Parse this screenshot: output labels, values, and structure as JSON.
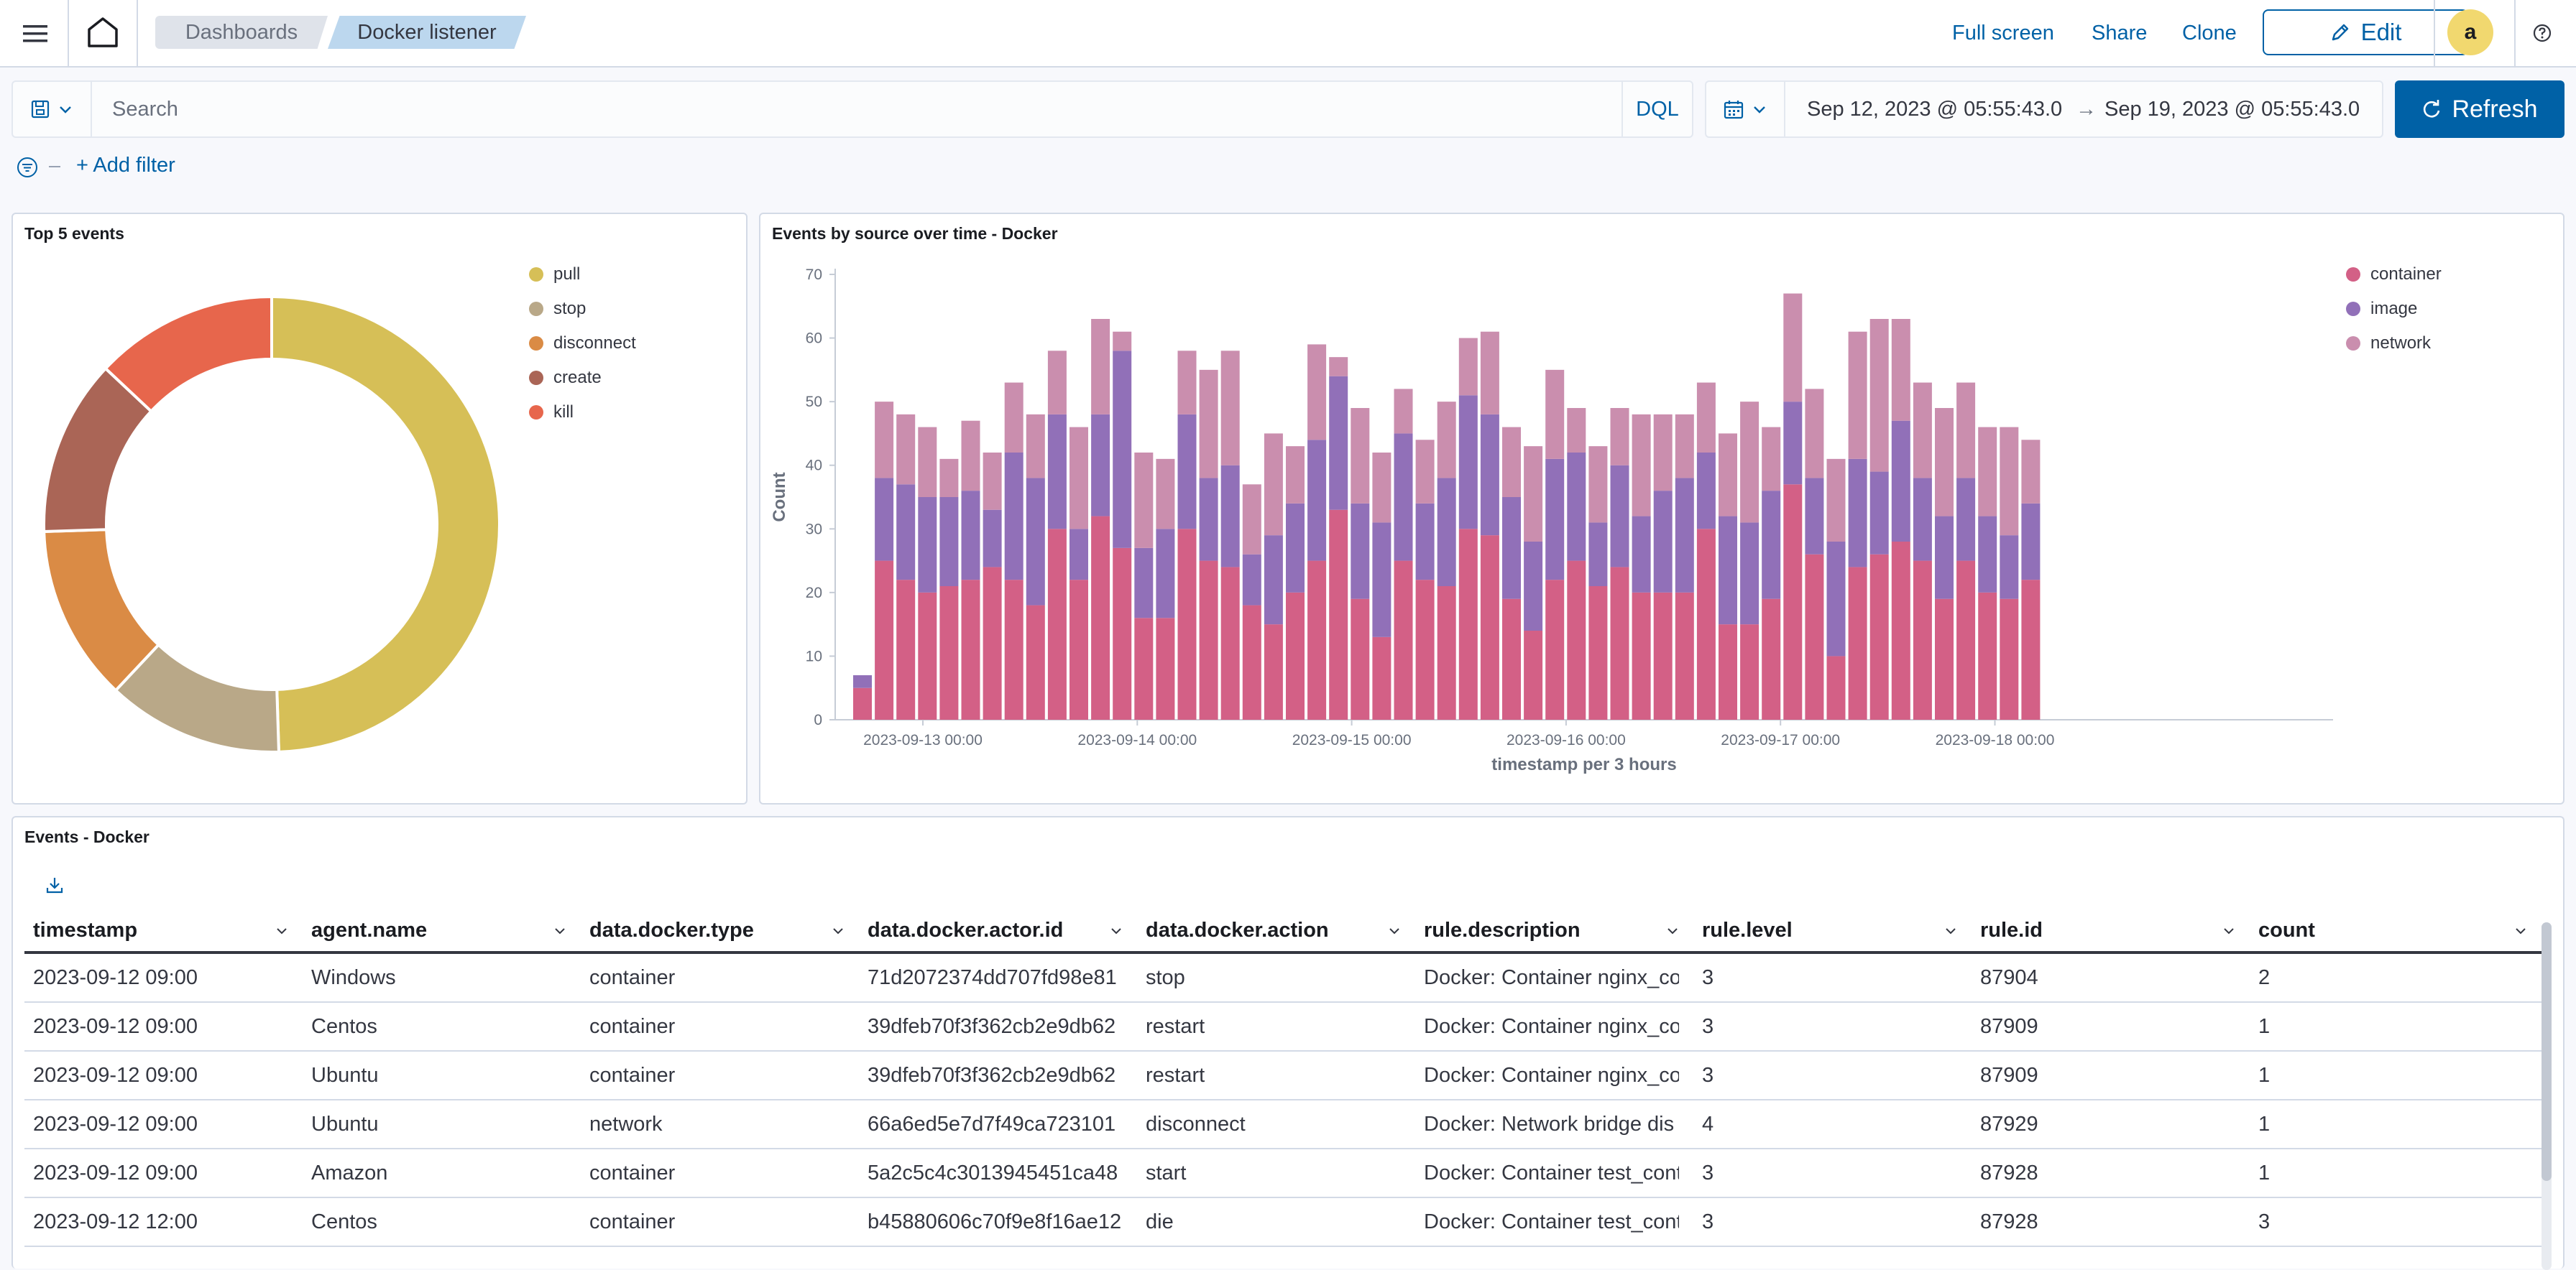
{
  "header": {
    "breadcrumbs": [
      "Dashboards",
      "Docker listener"
    ],
    "links": {
      "fullscreen": "Full screen",
      "share": "Share",
      "clone": "Clone"
    },
    "edit_label": "Edit",
    "avatar_initial": "a",
    "help_icon": "help-icon",
    "menu_icon": "hamburger-icon",
    "home_icon": "home-icon"
  },
  "query": {
    "placeholder": "Search",
    "language": "DQL",
    "date_start": "Sep 12, 2023 @ 05:55:43.0",
    "date_arrow": "→",
    "date_end": "Sep 19, 2023 @ 05:55:43.0",
    "refresh_label": "Refresh",
    "add_filter": "+ Add filter"
  },
  "colors": {
    "accent": "#0061a6",
    "pull": "#d6bf57",
    "stop": "#b9a888",
    "disconnect": "#da8b45",
    "create": "#aa6556",
    "kill": "#e7664c",
    "container": "#d36086",
    "image": "#9170b8",
    "network": "#ca8eae"
  },
  "donut_panel": {
    "title": "Top 5 events",
    "legend": [
      "pull",
      "stop",
      "disconnect",
      "create",
      "kill"
    ]
  },
  "bar_panel": {
    "title": "Events by source over time - Docker",
    "legend": [
      "container",
      "image",
      "network"
    ]
  },
  "chart_data": [
    {
      "type": "pie",
      "title": "Top 5 events",
      "categories": [
        "pull",
        "stop",
        "disconnect",
        "create",
        "kill"
      ],
      "values": [
        49.5,
        12.5,
        12.5,
        12.5,
        13
      ]
    },
    {
      "type": "bar",
      "stacked": true,
      "title": "Events by source over time - Docker",
      "xlabel": "timestamp per 3 hours",
      "ylabel": "Count",
      "ylim": [
        0,
        70
      ],
      "yticks": [
        0,
        10,
        20,
        30,
        40,
        50,
        60,
        70
      ],
      "xticks": [
        "2023-09-13 00:00",
        "2023-09-14 00:00",
        "2023-09-15 00:00",
        "2023-09-16 00:00",
        "2023-09-17 00:00",
        "2023-09-18 00:00"
      ],
      "series": [
        {
          "name": "container",
          "values": [
            5,
            25,
            22,
            20,
            21,
            22,
            24,
            22,
            18,
            30,
            22,
            32,
            27,
            16,
            16,
            30,
            25,
            24,
            18,
            15,
            20,
            25,
            33,
            19,
            13,
            25,
            22,
            21,
            30,
            29,
            19,
            14,
            22,
            25,
            21,
            24,
            20,
            20,
            20,
            30,
            15,
            15,
            19,
            37,
            26,
            10,
            24,
            26,
            28,
            25,
            19,
            25,
            20,
            19,
            22
          ]
        },
        {
          "name": "image",
          "values": [
            2,
            13,
            15,
            15,
            14,
            14,
            9,
            20,
            20,
            18,
            8,
            16,
            31,
            11,
            14,
            18,
            13,
            16,
            8,
            14,
            14,
            19,
            21,
            15,
            18,
            20,
            12,
            17,
            21,
            19,
            16,
            14,
            19,
            17,
            10,
            16,
            12,
            16,
            18,
            12,
            17,
            16,
            17,
            13,
            12,
            18,
            17,
            13,
            19,
            13,
            13,
            13,
            12,
            10,
            12
          ]
        },
        {
          "name": "network",
          "values": [
            0,
            12,
            11,
            11,
            6,
            11,
            9,
            11,
            10,
            10,
            16,
            15,
            3,
            15,
            11,
            10,
            17,
            18,
            11,
            16,
            9,
            15,
            3,
            15,
            11,
            7,
            10,
            12,
            9,
            13,
            11,
            15,
            14,
            7,
            12,
            9,
            16,
            12,
            10,
            11,
            13,
            19,
            10,
            17,
            14,
            13,
            20,
            24,
            16,
            15,
            17,
            15,
            14,
            17,
            10
          ]
        }
      ]
    }
  ],
  "table": {
    "title": "Events - Docker",
    "export_icon": "download-icon",
    "columns": [
      "timestamp",
      "agent.name",
      "data.docker.type",
      "data.docker.actor.id",
      "data.docker.action",
      "rule.description",
      "rule.level",
      "rule.id",
      "count"
    ],
    "rows": [
      [
        "2023-09-12 09:00",
        "Windows",
        "container",
        "71d2072374dd707fd98e81",
        "stop",
        "Docker: Container nginx_co",
        "3",
        "87904",
        "2"
      ],
      [
        "2023-09-12 09:00",
        "Centos",
        "container",
        "39dfeb70f3f362cb2e9db62",
        "restart",
        "Docker: Container nginx_co",
        "3",
        "87909",
        "1"
      ],
      [
        "2023-09-12 09:00",
        "Ubuntu",
        "container",
        "39dfeb70f3f362cb2e9db62",
        "restart",
        "Docker: Container nginx_co",
        "3",
        "87909",
        "1"
      ],
      [
        "2023-09-12 09:00",
        "Ubuntu",
        "network",
        "66a6ed5e7d7f49ca723101",
        "disconnect",
        "Docker: Network bridge dis",
        "4",
        "87929",
        "1"
      ],
      [
        "2023-09-12 09:00",
        "Amazon",
        "container",
        "5a2c5c4c3013945451ca48",
        "start",
        "Docker: Container test_cont",
        "3",
        "87928",
        "1"
      ],
      [
        "2023-09-12 12:00",
        "Centos",
        "container",
        "b45880606c70f9e8f16ae12",
        "die",
        "Docker: Container test_cont",
        "3",
        "87928",
        "3"
      ]
    ]
  }
}
